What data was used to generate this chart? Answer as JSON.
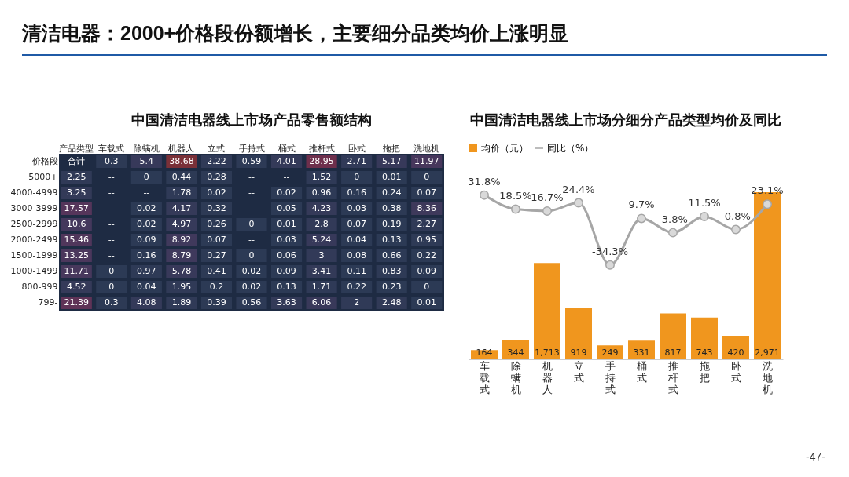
{
  "chart_data": [
    {
      "type": "heatmap",
      "title": "中国清洁电器线上市场产品零售额结构",
      "annotations": [
        "清洁电器：2000+价格段份额增长，主要细分品类均价上涨明显"
      ],
      "categories": [
        "产品类型",
        "车载式",
        "除螨机",
        "机器人",
        "立式",
        "手持式",
        "桶式",
        "推杆式",
        "卧式",
        "拖把",
        "洗地机"
      ],
      "y_categories": [
        "价格段",
        "5000+",
        "4000-4999",
        "3000-3999",
        "2500-2999",
        "2000-2499",
        "1500-1999",
        "1000-1499",
        "800-999",
        "799-"
      ],
      "cells": [
        [
          null,
          0.3,
          5.4,
          38.68,
          2.22,
          0.59,
          4.01,
          28.95,
          2.71,
          5.17,
          11.97
        ],
        [
          2.25,
          null,
          0,
          0.44,
          0.28,
          null,
          null,
          1.52,
          0,
          0.01,
          0
        ],
        [
          3.25,
          null,
          null,
          1.78,
          0.02,
          null,
          0.02,
          0.96,
          0.16,
          0.24,
          0.07
        ],
        [
          17.57,
          null,
          0.02,
          4.17,
          0.32,
          null,
          0.05,
          4.23,
          0.03,
          0.38,
          8.36
        ],
        [
          10.6,
          null,
          0.02,
          4.97,
          0.26,
          0,
          0.01,
          2.8,
          0.07,
          0.19,
          2.27
        ],
        [
          15.46,
          null,
          0.09,
          8.92,
          0.07,
          null,
          0.03,
          5.24,
          0.04,
          0.13,
          0.95
        ],
        [
          13.25,
          null,
          0.16,
          8.79,
          0.27,
          0,
          0.06,
          3,
          0.08,
          0.66,
          0.22
        ],
        [
          11.71,
          0,
          0.97,
          5.78,
          0.41,
          0.02,
          0.09,
          3.41,
          0.11,
          0.83,
          0.09
        ],
        [
          4.52,
          0,
          0.04,
          1.95,
          0.2,
          0.02,
          0.13,
          1.71,
          0.22,
          0.23,
          0
        ],
        [
          21.39,
          0.3,
          4.08,
          1.89,
          0.39,
          0.56,
          3.63,
          6.06,
          2,
          2.48,
          0.01
        ]
      ],
      "cell_labels": [
        [
          "合计",
          "0.3",
          "5.4",
          "38.68",
          "2.22",
          "0.59",
          "4.01",
          "28.95",
          "2.71",
          "5.17",
          "11.97"
        ],
        [
          "2.25",
          "--",
          "0",
          "0.44",
          "0.28",
          "--",
          "--",
          "1.52",
          "0",
          "0.01",
          "0"
        ],
        [
          "3.25",
          "--",
          "--",
          "1.78",
          "0.02",
          "--",
          "0.02",
          "0.96",
          "0.16",
          "0.24",
          "0.07"
        ],
        [
          "17.57",
          "--",
          "0.02",
          "4.17",
          "0.32",
          "--",
          "0.05",
          "4.23",
          "0.03",
          "0.38",
          "8.36"
        ],
        [
          "10.6",
          "--",
          "0.02",
          "4.97",
          "0.26",
          "0",
          "0.01",
          "2.8",
          "0.07",
          "0.19",
          "2.27"
        ],
        [
          "15.46",
          "--",
          "0.09",
          "8.92",
          "0.07",
          "--",
          "0.03",
          "5.24",
          "0.04",
          "0.13",
          "0.95"
        ],
        [
          "13.25",
          "--",
          "0.16",
          "8.79",
          "0.27",
          "0",
          "0.06",
          "3",
          "0.08",
          "0.66",
          "0.22"
        ],
        [
          "11.71",
          "0",
          "0.97",
          "5.78",
          "0.41",
          "0.02",
          "0.09",
          "3.41",
          "0.11",
          "0.83",
          "0.09"
        ],
        [
          "4.52",
          "0",
          "0.04",
          "1.95",
          "0.2",
          "0.02",
          "0.13",
          "1.71",
          "0.22",
          "0.23",
          "0"
        ],
        [
          "21.39",
          "0.3",
          "4.08",
          "1.89",
          "0.39",
          "0.56",
          "3.63",
          "6.06",
          "2",
          "2.48",
          "0.01"
        ]
      ]
    },
    {
      "type": "bar",
      "title": "中国清洁电器线上市场分细分产品类型均价及同比",
      "annotations": [
        "-47-"
      ],
      "categories": [
        "车载式",
        "除螨机",
        "机器人",
        "立式",
        "手持式",
        "桶式",
        "推杆式",
        "拖把",
        "卧式",
        "洗地机"
      ],
      "legend": "top",
      "marker": "circle",
      "series": [
        {
          "name": "均价（元）",
          "type": "bar",
          "color": "#f0961e",
          "values": [
            164,
            344,
            1713,
            919,
            249,
            331,
            817,
            743,
            420,
            2971
          ],
          "value_labels": [
            "164",
            "344",
            "1,713",
            "919",
            "249",
            "331",
            "817",
            "743",
            "420",
            "2,971"
          ]
        },
        {
          "name": "同比（%）",
          "type": "line",
          "axis": "y2",
          "color": "#a6a6a6",
          "values": [
            31.8,
            18.5,
            16.7,
            24.4,
            -34.3,
            9.7,
            -3.8,
            11.5,
            -0.8,
            23.1
          ],
          "value_labels": [
            "31.8%",
            "18.5%",
            "16.7%",
            "24.4%",
            "-34.3%",
            "9.7%",
            "-3.8%",
            "11.5%",
            "-0.8%",
            "23.1%"
          ]
        }
      ]
    }
  ]
}
